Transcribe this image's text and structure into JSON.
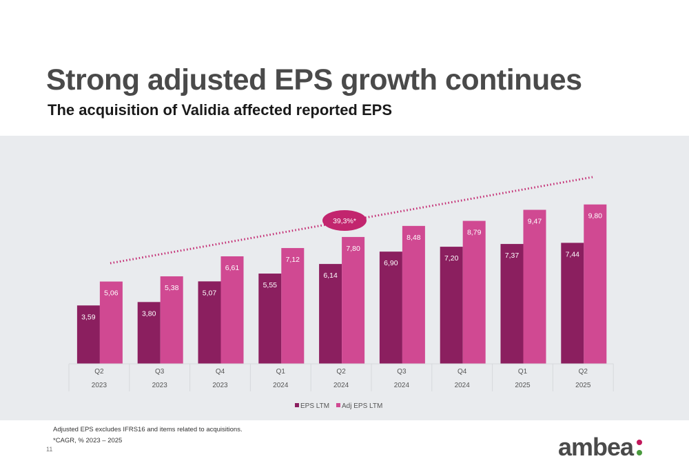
{
  "slide": {
    "title": "Strong adjusted EPS growth continues",
    "subtitle": "The acquisition of Validia affected reported EPS",
    "footnote_1": "Adjusted EPS excludes IFRS16 and items related to acquisitions.",
    "footnote_2": "*CAGR, % 2023 – 2025",
    "page_number": "11",
    "logo_text": "ambea"
  },
  "colors": {
    "eps": "#8b1f5f",
    "adj_eps": "#d04992",
    "trend": "#c2256e",
    "panel_bg": "#e9ebee",
    "logo_dot_top": "#c2185b",
    "logo_dot_bottom": "#4a9a3e"
  },
  "chart_data": {
    "type": "bar",
    "categories": [
      [
        "Q2",
        "2023"
      ],
      [
        "Q3",
        "2023"
      ],
      [
        "Q4",
        "2023"
      ],
      [
        "Q1",
        "2024"
      ],
      [
        "Q2",
        "2024"
      ],
      [
        "Q3",
        "2024"
      ],
      [
        "Q4",
        "2024"
      ],
      [
        "Q1",
        "2025"
      ],
      [
        "Q2",
        "2025"
      ]
    ],
    "series": [
      {
        "name": "EPS LTM",
        "values": [
          3.59,
          3.8,
          5.07,
          5.55,
          6.14,
          6.9,
          7.2,
          7.37,
          7.44
        ],
        "labels": [
          "3,59",
          "3,80",
          "5,07",
          "5,55",
          "6,14",
          "6,90",
          "7,20",
          "7,37",
          "7,44"
        ]
      },
      {
        "name": "Adj EPS LTM",
        "values": [
          5.06,
          5.38,
          6.61,
          7.12,
          7.8,
          8.48,
          8.79,
          9.47,
          9.8
        ],
        "labels": [
          "5,06",
          "5,38",
          "6,61",
          "7,12",
          "7,80",
          "8,48",
          "8,79",
          "9,47",
          "9,80"
        ]
      }
    ],
    "annotation": "39,3%*",
    "trend_line": "dotted",
    "ylim": [
      0,
      10
    ],
    "legend_position": "bottom-center",
    "grid": false
  }
}
